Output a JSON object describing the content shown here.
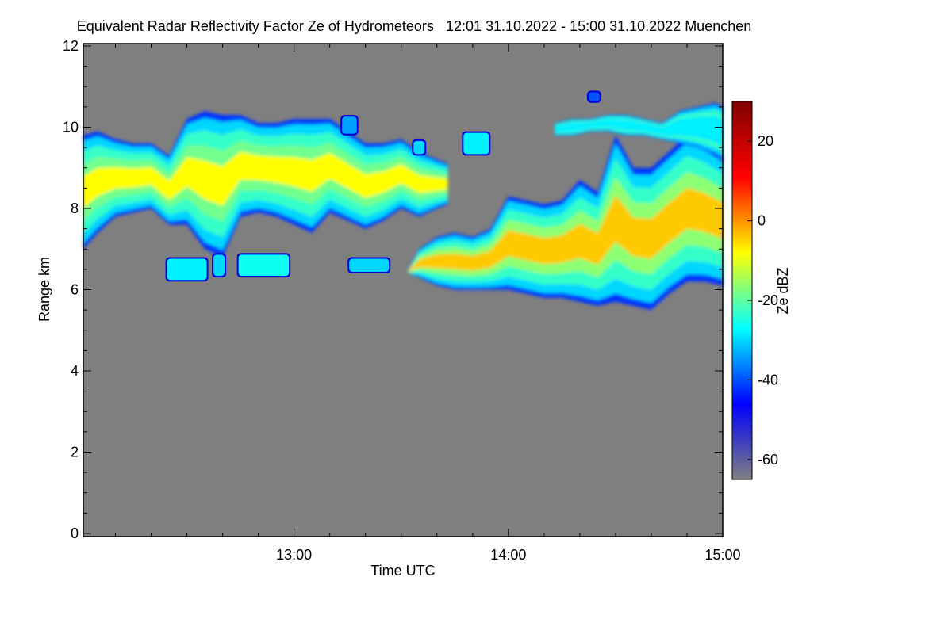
{
  "chart_data": {
    "type": "heatmap",
    "title": "Equivalent Radar Reflectivity Factor Ze of Hydrometeors   12:01 31.10.2022 - 15:00 31.10.2022 Muenchen",
    "xlabel": "Time UTC",
    "ylabel": "Range km",
    "colorbar_label": "Ze dBZ",
    "x_range": [
      "12:01",
      "15:00"
    ],
    "xlim_minutes_utc": [
      721,
      900
    ],
    "x_ticks": [
      {
        "minute": 780,
        "label": "13:00"
      },
      {
        "minute": 840,
        "label": "14:00"
      },
      {
        "minute": 900,
        "label": "15:00"
      }
    ],
    "x_minor_tick_step_minutes": 10,
    "ylim": [
      0,
      12
    ],
    "y_ticks": [
      0,
      2,
      4,
      6,
      8,
      10,
      12
    ],
    "clim": [
      -65,
      30
    ],
    "colorbar_ticks": [
      20,
      0,
      -20,
      -40,
      -60
    ],
    "background_color": "#7f7f7f",
    "colormap": [
      "#7f7f7f",
      "#0000ff",
      "#00ffff",
      "#ffff00",
      "#ff0000",
      "#800000"
    ],
    "cloud_layers": [
      {
        "name": "upper-cloud-left",
        "x": [
          721,
          725,
          730,
          735,
          740,
          745,
          750,
          755,
          760,
          765,
          770,
          775,
          780,
          785,
          790,
          795,
          800,
          805,
          810,
          815,
          820,
          823
        ],
        "top_km": [
          9.8,
          9.9,
          9.7,
          9.6,
          9.6,
          9.3,
          10.2,
          10.4,
          10.3,
          10.3,
          10.1,
          10.1,
          10.2,
          10.2,
          10.2,
          9.9,
          9.6,
          9.6,
          9.7,
          9.4,
          9.2,
          9.1
        ],
        "base_km": [
          7.0,
          7.4,
          7.8,
          7.9,
          8.0,
          7.6,
          7.6,
          7.0,
          6.8,
          7.8,
          7.9,
          7.8,
          7.6,
          7.4,
          7.9,
          7.7,
          7.5,
          7.7,
          8.0,
          7.8,
          8.0,
          8.1
        ],
        "peak_dbz": -8
      },
      {
        "name": "lower-cloud-right",
        "x": [
          812,
          815,
          820,
          825,
          830,
          835,
          840,
          845,
          850,
          855,
          860,
          865,
          870,
          875,
          880,
          885,
          890,
          895,
          900
        ],
        "top_km": [
          6.5,
          7.0,
          7.3,
          7.4,
          7.3,
          7.5,
          8.3,
          8.2,
          8.1,
          8.2,
          8.7,
          8.4,
          9.8,
          9.0,
          9.0,
          9.4,
          9.8,
          9.6,
          9.3
        ],
        "base_km": [
          6.4,
          6.3,
          6.1,
          6.0,
          6.0,
          6.0,
          6.0,
          5.9,
          5.8,
          5.8,
          5.7,
          5.6,
          5.7,
          5.6,
          5.5,
          5.9,
          6.2,
          6.2,
          6.1
        ],
        "peak_dbz": -4
      },
      {
        "name": "upper-cloud-right-thin",
        "x": [
          853,
          858,
          863,
          868,
          873,
          878,
          883,
          888,
          893,
          898,
          900
        ],
        "top_km": [
          10.1,
          10.2,
          10.2,
          10.3,
          10.3,
          10.2,
          10.1,
          10.4,
          10.5,
          10.6,
          10.5
        ],
        "base_km": [
          9.8,
          9.8,
          9.9,
          9.9,
          9.8,
          9.8,
          9.7,
          9.6,
          9.5,
          9.3,
          9.2
        ],
        "peak_dbz": -28
      }
    ],
    "small_patches": [
      {
        "x": [
          744,
          756
        ],
        "top_km": 6.8,
        "base_km": 6.2,
        "peak_dbz": -28
      },
      {
        "x": [
          757,
          761
        ],
        "top_km": 6.9,
        "base_km": 6.3,
        "peak_dbz": -30
      },
      {
        "x": [
          764,
          779
        ],
        "top_km": 6.9,
        "base_km": 6.3,
        "peak_dbz": -26
      },
      {
        "x": [
          795,
          807
        ],
        "top_km": 6.8,
        "base_km": 6.4,
        "peak_dbz": -30
      },
      {
        "x": [
          793,
          798
        ],
        "top_km": 10.3,
        "base_km": 9.8,
        "peak_dbz": -34
      },
      {
        "x": [
          813,
          817
        ],
        "top_km": 9.7,
        "base_km": 9.3,
        "peak_dbz": -30
      },
      {
        "x": [
          827,
          835
        ],
        "top_km": 9.9,
        "base_km": 9.3,
        "peak_dbz": -28
      },
      {
        "x": [
          862,
          866
        ],
        "top_km": 10.9,
        "base_km": 10.6,
        "peak_dbz": -40
      }
    ]
  }
}
